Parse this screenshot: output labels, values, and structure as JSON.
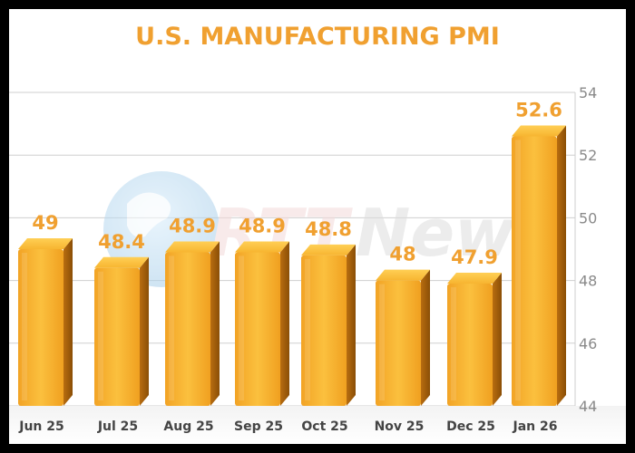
{
  "chart_data": {
    "type": "bar",
    "title": "U.S. MANUFACTURING PMI",
    "categories": [
      "Jun 25",
      "Jul 25",
      "Aug 25",
      "Sep 25",
      "Oct 25",
      "Nov 25",
      "Dec 25",
      "Jan 26"
    ],
    "values": [
      49,
      48.4,
      48.9,
      48.9,
      48.8,
      48,
      47.9,
      52.6
    ],
    "value_labels": [
      "49",
      "48.4",
      "48.9",
      "48.9",
      "48.8",
      "48",
      "47.9",
      "52.6"
    ],
    "ylim": [
      44,
      54
    ],
    "yticks": [
      44,
      46,
      48,
      50,
      52,
      54
    ],
    "y_axis_side": "right",
    "grid": true,
    "bar_color": "#f7a929",
    "label_color": "#f0a030"
  },
  "watermark": {
    "text_a": "RTT",
    "text_b": "News"
  }
}
